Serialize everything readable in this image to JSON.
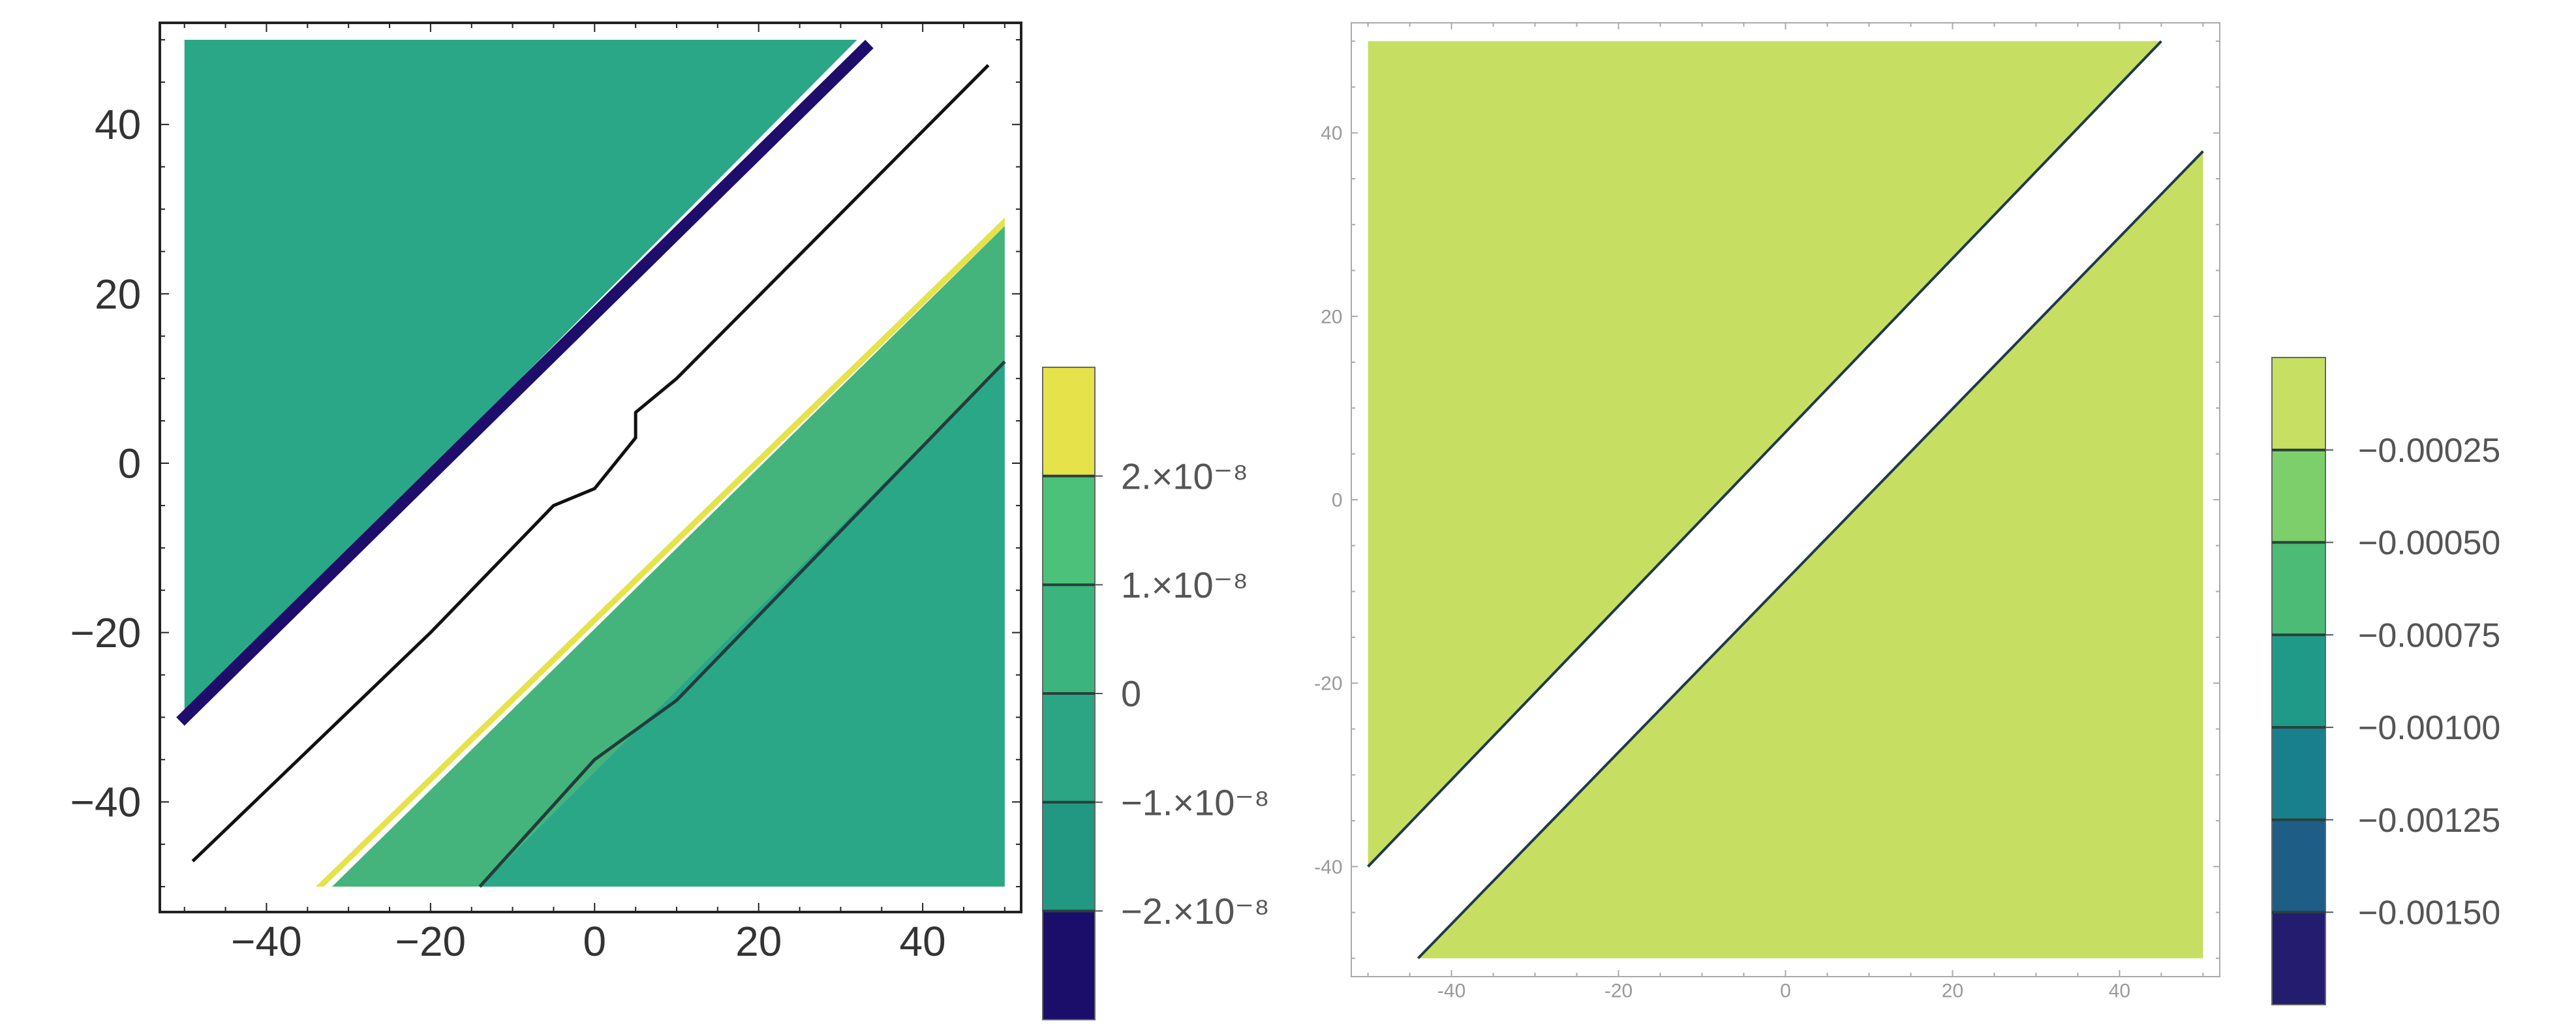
{
  "chart_data": [
    {
      "type": "contour",
      "title": "",
      "xlabel": "",
      "ylabel": "",
      "xlim": [
        -53,
        52
      ],
      "ylim": [
        -53,
        52
      ],
      "x_ticks": [
        -40,
        -20,
        0,
        20,
        40
      ],
      "y_ticks": [
        40,
        20,
        0,
        -20,
        -40
      ],
      "x_tick_labels": [
        "−40",
        "−20",
        "0",
        "20",
        "40"
      ],
      "y_tick_labels": [
        "40",
        "20",
        "0",
        "−20",
        "−40"
      ],
      "regions": [
        {
          "name": "upper-left",
          "color": "#2aa786",
          "polygon": [
            [
              -50,
              50
            ],
            [
              32,
              50
            ],
            [
              -50,
              -30
            ]
          ]
        },
        {
          "name": "dark-edge",
          "color": "#1f0d6b",
          "polygon": [
            [
              33,
              50
            ],
            [
              34,
              49
            ],
            [
              -50,
              -31
            ],
            [
              -51,
              -30
            ]
          ]
        },
        {
          "name": "lower-right-band",
          "color": "#44b47c",
          "polygon": [
            [
              -32,
              -50
            ],
            [
              50,
              28
            ],
            [
              50,
              12
            ],
            [
              -14,
              -50
            ]
          ]
        },
        {
          "name": "lower-right",
          "color": "#2aa786",
          "polygon": [
            [
              -14,
              -50
            ],
            [
              50,
              12
            ],
            [
              50,
              -50
            ]
          ]
        },
        {
          "name": "yellow-edge",
          "color": "#e6e24a",
          "polygon": [
            [
              -33,
              -50
            ],
            [
              50,
              28
            ],
            [
              50,
              29
            ],
            [
              -34,
              -50
            ]
          ]
        }
      ],
      "contour_lines": [
        {
          "name": "center-line",
          "color": "#111111",
          "points": [
            [
              -49,
              -47
            ],
            [
              -20,
              -20
            ],
            [
              -5,
              -5
            ],
            [
              0,
              -3
            ],
            [
              5,
              3
            ],
            [
              5,
              6
            ],
            [
              10,
              10
            ],
            [
              48,
              47
            ]
          ]
        },
        {
          "name": "lower-line",
          "color": "#233d3a",
          "points": [
            [
              -14,
              -50
            ],
            [
              0,
              -35
            ],
            [
              10,
              -28
            ],
            [
              50,
              12
            ]
          ]
        }
      ],
      "colorbar": {
        "levels": [
          {
            "color": "#1a0e6a"
          },
          {
            "color": "#229883"
          },
          {
            "color": "#2ca585"
          },
          {
            "color": "#3bb57d"
          },
          {
            "color": "#4cc179"
          },
          {
            "color": "#e6e24a"
          }
        ],
        "tick_labels": [
          "2.×10⁻⁸",
          "1.×10⁻⁸",
          "0",
          "−1.×10⁻⁸",
          "−2.×10⁻⁸"
        ]
      }
    },
    {
      "type": "contour",
      "title": "",
      "xlabel": "",
      "ylabel": "",
      "xlim": [
        -52,
        52
      ],
      "ylim": [
        -52,
        52
      ],
      "x_ticks": [
        -40,
        -20,
        0,
        20,
        40
      ],
      "y_ticks": [
        40,
        20,
        0,
        -20,
        -40
      ],
      "x_tick_labels": [
        "-40",
        "-20",
        "0",
        "20",
        "40"
      ],
      "y_tick_labels": [
        "40",
        "20",
        "0",
        "-20",
        "-40"
      ],
      "regions": [
        {
          "name": "upper-left",
          "color": "#c6df62",
          "polygon": [
            [
              -50,
              50
            ],
            [
              45,
              50
            ],
            [
              -50,
              -40
            ]
          ]
        },
        {
          "name": "lower-right",
          "color": "#c6df62",
          "polygon": [
            [
              -44,
              -50
            ],
            [
              50,
              38
            ],
            [
              50,
              -50
            ]
          ]
        }
      ],
      "contour_lines": [
        {
          "name": "upper-edge",
          "color": "#1f3a4a",
          "points": [
            [
              -50,
              -40
            ],
            [
              45,
              50
            ]
          ]
        },
        {
          "name": "lower-edge",
          "color": "#1f3a4a",
          "points": [
            [
              -44,
              -50
            ],
            [
              50,
              38
            ]
          ]
        }
      ],
      "colorbar": {
        "levels": [
          {
            "color": "#241c6e"
          },
          {
            "color": "#1d5d86"
          },
          {
            "color": "#17808c"
          },
          {
            "color": "#1f9a89"
          },
          {
            "color": "#4bbb76"
          },
          {
            "color": "#7ccf6a"
          },
          {
            "color": "#c7df63"
          }
        ],
        "tick_labels": [
          "−0.00025",
          "−0.00050",
          "−0.00075",
          "−0.00100",
          "−0.00125",
          "−0.00150"
        ]
      }
    }
  ]
}
